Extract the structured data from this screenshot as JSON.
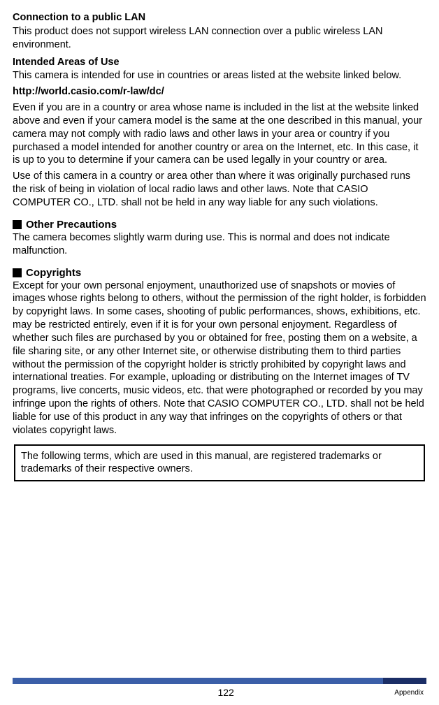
{
  "sections": {
    "lan": {
      "title": "Connection to a public LAN",
      "body": "This product does not support wireless LAN connection over a public wireless LAN environment."
    },
    "intended": {
      "title": "Intended Areas of Use",
      "body1": "This camera is intended for use in countries or areas listed at the website linked below.",
      "url": "http://world.casio.com/r-law/dc/",
      "body2": "Even if you are in a country or area whose name is included in the list at the website linked above and even if your camera model is the same at the one described in this manual, your camera may not comply with radio laws and other laws in your area or country if you purchased a model intended for another country or area on the Internet, etc. In this case, it is up to you to determine if your camera can be used legally in your country or area.",
      "body3": "Use of this camera in a country or area other than where it was originally purchased runs the risk of being in violation of local radio laws and other laws. Note that CASIO COMPUTER CO., LTD. shall not be held in any way liable for any such violations."
    },
    "precautions": {
      "title": "Other Precautions",
      "body": "The camera becomes slightly warm during use. This is normal and does not indicate malfunction."
    },
    "copyrights": {
      "title": "Copyrights",
      "body": "Except for your own personal enjoyment, unauthorized use of snapshots or movies of images whose rights belong to others, without the permission of the right holder, is forbidden by copyright laws. In some cases, shooting of public performances, shows, exhibitions, etc. may be restricted entirely, even if it is for your own personal enjoyment. Regardless of whether such files are purchased by you or obtained for free, posting them on a website, a file sharing site, or any other Internet site, or otherwise distributing them to third parties without the permission of the copyright holder is strictly prohibited by copyright laws and international treaties. For example, uploading or distributing on the Internet images of TV programs, live concerts, music videos, etc. that were photographed or recorded by you may infringe upon the rights of others. Note that CASIO COMPUTER CO., LTD. shall not be held liable for use of this product in any way that infringes on the copyrights of others or that violates copyright laws."
    },
    "trademark_note": "The following terms, which are used in this manual, are registered trademarks or trademarks of their respective owners."
  },
  "footer": {
    "page": "122",
    "section": "Appendix"
  },
  "colors": {
    "bar_main": "#3b5fa8",
    "bar_accent": "#1b2e66",
    "text": "#000000",
    "background": "#ffffff"
  }
}
